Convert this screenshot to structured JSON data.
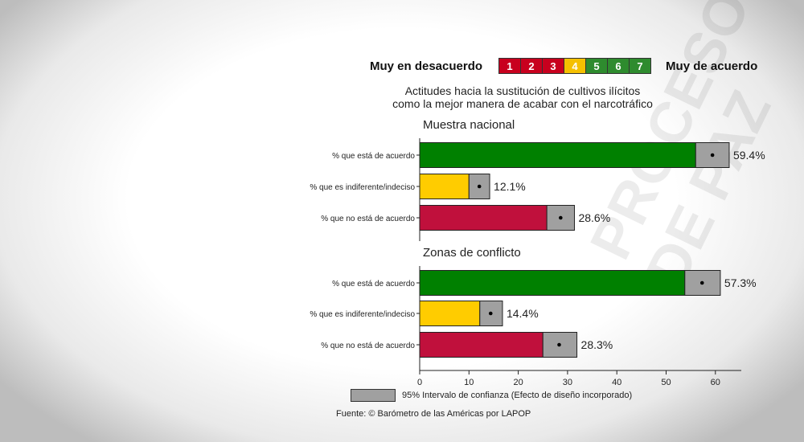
{
  "watermark": {
    "line1": "PROCESO",
    "line2": "DE PAZ"
  },
  "scale": {
    "left_label": "Muy en desacuerdo",
    "right_label": "Muy de acuerdo",
    "boxes": [
      {
        "label": "1",
        "color": "#c8001e"
      },
      {
        "label": "2",
        "color": "#c8001e"
      },
      {
        "label": "3",
        "color": "#c8001e"
      },
      {
        "label": "4",
        "color": "#f5c000"
      },
      {
        "label": "5",
        "color": "#2e8b2e"
      },
      {
        "label": "6",
        "color": "#2e8b2e"
      },
      {
        "label": "7",
        "color": "#2e8b2e"
      }
    ]
  },
  "title": {
    "line1": "Actitudes hacia la sustitución de cultivos ilícitos",
    "line2": "como la mejor manera de acabar con el narcotráfico"
  },
  "legend": {
    "label": "95% Intervalo de confianza (Efecto de diseño incorporado)",
    "color": "#a0a0a0"
  },
  "source": "Fuente: © Barómetro de las Américas por LAPOP",
  "colors": {
    "agree": "#008000",
    "neutral": "#ffcc00",
    "disagree": "#c0103c",
    "ci": "#a0a0a0"
  },
  "chart_data": {
    "type": "bar",
    "orientation": "horizontal",
    "xlim": [
      0,
      65
    ],
    "xticks": [
      0,
      10,
      20,
      30,
      40,
      50,
      60
    ],
    "panels": [
      {
        "title": "Muestra nacional",
        "bars": [
          {
            "category": "% que está de acuerdo",
            "value": 59.4,
            "label": "59.4%",
            "ci": [
              56.0,
              62.8
            ],
            "color_key": "agree"
          },
          {
            "category": "% que es indiferente/indeciso",
            "value": 12.1,
            "label": "12.1%",
            "ci": [
              10.0,
              14.2
            ],
            "color_key": "neutral"
          },
          {
            "category": "% que no está de acuerdo",
            "value": 28.6,
            "label": "28.6%",
            "ci": [
              25.8,
              31.4
            ],
            "color_key": "disagree"
          }
        ]
      },
      {
        "title": "Zonas de conflicto",
        "bars": [
          {
            "category": "% que está de acuerdo",
            "value": 57.3,
            "label": "57.3%",
            "ci": [
              53.8,
              61.0
            ],
            "color_key": "agree"
          },
          {
            "category": "% que es indiferente/indeciso",
            "value": 14.4,
            "label": "14.4%",
            "ci": [
              12.2,
              16.8
            ],
            "color_key": "neutral"
          },
          {
            "category": "% que no está de acuerdo",
            "value": 28.3,
            "label": "28.3%",
            "ci": [
              25.0,
              31.9
            ],
            "color_key": "disagree"
          }
        ]
      }
    ]
  }
}
